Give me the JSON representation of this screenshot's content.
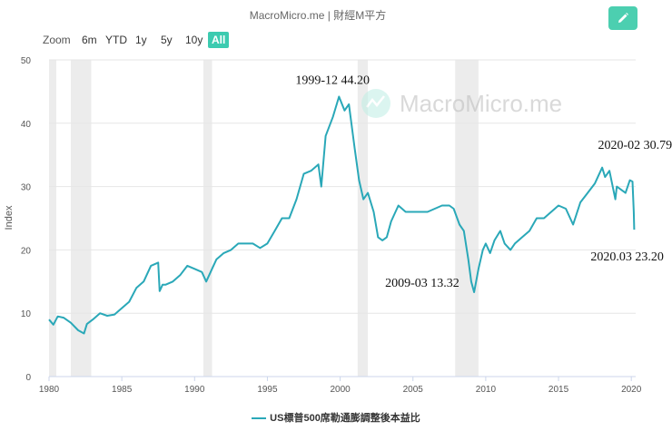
{
  "header": {
    "title": "MacroMicro.me | 財經M平方",
    "edit_icon": "pencil-icon"
  },
  "zoom": {
    "label": "Zoom",
    "buttons": [
      "6m",
      "YTD",
      "1y",
      "5y",
      "10y",
      "All"
    ],
    "active": "All"
  },
  "watermark": {
    "text": "MacroMicro.me"
  },
  "colors": {
    "series": "#2aa8b8",
    "accent": "#3ccbb0",
    "recession": "#ececec"
  },
  "chart_data": {
    "type": "line",
    "title": "",
    "xlabel": "",
    "ylabel": "Index",
    "xlim": [
      1980,
      2020.3
    ],
    "ylim": [
      0,
      50
    ],
    "x_ticks": [
      "1980",
      "1985",
      "1990",
      "1995",
      "2000",
      "2005",
      "2010",
      "2015",
      "2020"
    ],
    "y_ticks": [
      "0",
      "10",
      "20",
      "30",
      "40",
      "50"
    ],
    "recessions": [
      [
        1980.0,
        1980.5
      ],
      [
        1981.5,
        1982.9
      ],
      [
        1990.6,
        1991.2
      ],
      [
        2001.2,
        2001.9
      ],
      [
        2007.9,
        2009.5
      ]
    ],
    "series": [
      {
        "name": "US標普500席勒通膨調整後本益比",
        "x": [
          1980.0,
          1980.3,
          1980.6,
          1981.0,
          1981.5,
          1982.0,
          1982.4,
          1982.6,
          1983.0,
          1983.5,
          1984.0,
          1984.5,
          1985.0,
          1985.5,
          1986.0,
          1986.5,
          1987.0,
          1987.5,
          1987.6,
          1987.8,
          1988.0,
          1988.5,
          1989.0,
          1989.5,
          1990.0,
          1990.5,
          1990.8,
          1991.2,
          1991.5,
          1992.0,
          1992.5,
          1993.0,
          1993.5,
          1994.0,
          1994.5,
          1995.0,
          1995.5,
          1996.0,
          1996.5,
          1997.0,
          1997.5,
          1998.0,
          1998.5,
          1998.7,
          1999.0,
          1999.5,
          1999.92,
          2000.3,
          2000.6,
          2001.0,
          2001.3,
          2001.6,
          2001.9,
          2002.3,
          2002.6,
          2002.9,
          2003.2,
          2003.5,
          2004.0,
          2004.5,
          2005.0,
          2005.5,
          2006.0,
          2006.5,
          2007.0,
          2007.5,
          2007.8,
          2008.2,
          2008.5,
          2008.8,
          2009.0,
          2009.2,
          2009.5,
          2009.8,
          2010.0,
          2010.3,
          2010.6,
          2011.0,
          2011.3,
          2011.7,
          2012.0,
          2012.5,
          2013.0,
          2013.5,
          2014.0,
          2014.5,
          2015.0,
          2015.5,
          2016.0,
          2016.5,
          2017.0,
          2017.5,
          2018.0,
          2018.2,
          2018.5,
          2018.9,
          2019.0,
          2019.3,
          2019.6,
          2019.9,
          2020.08,
          2020.17,
          2020.2
        ],
        "values": [
          9.0,
          8.2,
          9.5,
          9.3,
          8.5,
          7.3,
          6.8,
          8.3,
          9.0,
          10.0,
          9.6,
          9.8,
          10.8,
          11.8,
          14.0,
          15.0,
          17.5,
          18.0,
          13.5,
          14.5,
          14.5,
          15.0,
          16.0,
          17.5,
          17.0,
          16.5,
          15.0,
          17.0,
          18.5,
          19.5,
          20.0,
          21.0,
          21.0,
          21.0,
          20.3,
          21.0,
          23.0,
          25.0,
          25.0,
          28.0,
          32.0,
          32.5,
          33.5,
          30.0,
          38.0,
          41.0,
          44.2,
          42.0,
          43.0,
          36.0,
          31.0,
          28.0,
          29.0,
          26.0,
          22.0,
          21.5,
          22.0,
          24.5,
          27.0,
          26.0,
          26.0,
          26.0,
          26.0,
          26.5,
          27.0,
          27.0,
          26.5,
          24.0,
          23.0,
          18.5,
          15.0,
          13.32,
          17.0,
          20.0,
          21.0,
          19.5,
          21.5,
          23.0,
          21.0,
          20.0,
          21.0,
          22.0,
          23.0,
          25.0,
          25.0,
          26.0,
          27.0,
          26.5,
          24.0,
          27.5,
          29.0,
          30.5,
          33.0,
          31.5,
          32.5,
          28.0,
          30.0,
          29.5,
          29.0,
          31.0,
          30.79,
          26.0,
          23.2
        ]
      }
    ],
    "annotations": [
      {
        "text": "1999-12  44.20",
        "x": 1999.92,
        "y": 44.2
      },
      {
        "text": "2009-03  13.32",
        "x": 2009.2,
        "y": 13.32
      },
      {
        "text": "2020-02  30.79",
        "x": 2020.08,
        "y": 30.79
      },
      {
        "text": "2020.03   23.20",
        "x": 2020.2,
        "y": 23.2
      }
    ]
  }
}
